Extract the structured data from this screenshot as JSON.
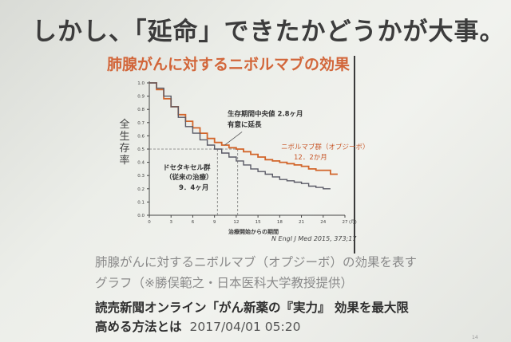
{
  "slide": {
    "title": "しかし、「延命」できたかどうかが大事。",
    "chart_title": "肺腺がんに対するニボルマブの効果",
    "caption_line1": "肺腺がんに対するニボルマブ（オプジーボ）の効果を表す",
    "caption_line2": "グラフ（※勝俣範之・日本医科大学教授提供）",
    "headline_line1": "読売新聞オンライン「がん新薬の『実力』 効果を最大限",
    "headline_line2": "高める方法とは",
    "timestamp": "2017/04/01 05:20",
    "page_number": "14"
  },
  "chart_data": {
    "type": "line",
    "ylabel": "全生存率",
    "xlabel": "治療開始からの期間",
    "x_unit": "(月)",
    "xlim": [
      0,
      27
    ],
    "ylim": [
      0,
      1.0
    ],
    "x_ticks": [
      0,
      3,
      6,
      9,
      12,
      15,
      18,
      21,
      24,
      27
    ],
    "y_ticks": [
      0,
      0.1,
      0.2,
      0.3,
      0.4,
      0.5,
      0.6,
      0.7,
      0.8,
      0.9,
      1.0
    ],
    "grid": false,
    "series": [
      {
        "name": "ニボルマブ群（オプジーボ）",
        "median_label": "12．2か月",
        "color": "#d2652a",
        "x": [
          0,
          1,
          2,
          3,
          4,
          5,
          6,
          7,
          8,
          9,
          10,
          11,
          12,
          13,
          14,
          15,
          16,
          17,
          18,
          19,
          20,
          21,
          22,
          23,
          24,
          25,
          26
        ],
        "y": [
          1.0,
          0.95,
          0.88,
          0.82,
          0.76,
          0.71,
          0.66,
          0.62,
          0.58,
          0.55,
          0.53,
          0.51,
          0.5,
          0.48,
          0.46,
          0.44,
          0.42,
          0.41,
          0.4,
          0.39,
          0.38,
          0.37,
          0.35,
          0.34,
          0.34,
          0.31,
          0.31
        ]
      },
      {
        "name": "ドセタキセル群（従来の治療）",
        "median_label": "9．4ヶ月",
        "color": "#5a5a66",
        "x": [
          0,
          1,
          2,
          3,
          4,
          5,
          6,
          7,
          8,
          9,
          10,
          11,
          12,
          13,
          14,
          15,
          16,
          17,
          18,
          19,
          20,
          21,
          22,
          23,
          24,
          25
        ],
        "y": [
          1.0,
          0.96,
          0.9,
          0.82,
          0.74,
          0.67,
          0.62,
          0.57,
          0.53,
          0.5,
          0.47,
          0.44,
          0.41,
          0.38,
          0.35,
          0.33,
          0.31,
          0.29,
          0.27,
          0.26,
          0.25,
          0.24,
          0.22,
          0.21,
          0.2,
          0.2
        ]
      }
    ],
    "annotations": [
      {
        "text": "生存期間中央値 2.8ヶ月",
        "x": 10.8,
        "y": 0.75
      },
      {
        "text": "有意に延長",
        "x": 10.8,
        "y": 0.67
      }
    ],
    "median_ref": {
      "y": 0.5,
      "x": [
        9.4,
        12.2
      ]
    },
    "source": "N Engl J Med 2015, 373;17"
  }
}
